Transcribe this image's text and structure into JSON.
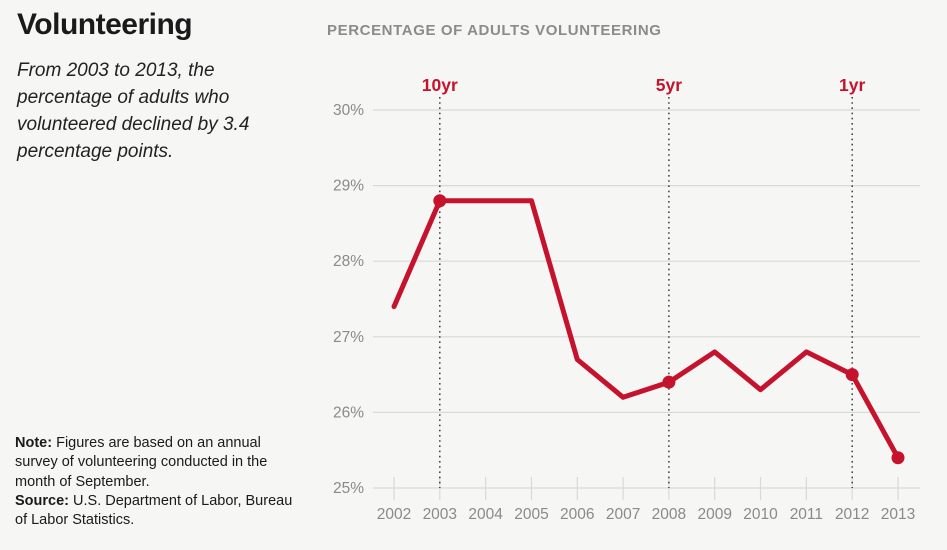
{
  "sidebar": {
    "title": "Volunteering",
    "subtitle": "From 2003 to 2013, the percentage of adults who volunteered declined by 3.4 percentage points.",
    "note_label": "Note:",
    "note_text": " Figures are based on an annual survey of volunteering conducted in the month of September.",
    "source_label": "Source:",
    "source_text": " U.S. Department of Labor, Bureau of Labor Statistics."
  },
  "chart": {
    "title": "PERCENTAGE OF ADULTS VOLUNTEERING"
  },
  "colors": {
    "accent_red": "#c5132d",
    "grid": "#d9d9d8",
    "axis_text": "#8a8a8a",
    "chart_title_text": "#8b8b8b",
    "dotted_line": "#222222",
    "background": "#f6f6f5"
  },
  "chart_data": {
    "type": "line",
    "title": "PERCENTAGE OF ADULTS VOLUNTEERING",
    "x": [
      2002,
      2003,
      2004,
      2005,
      2006,
      2007,
      2008,
      2009,
      2010,
      2011,
      2012,
      2013
    ],
    "values": [
      27.4,
      28.8,
      28.8,
      28.8,
      26.7,
      26.2,
      26.4,
      26.8,
      26.3,
      26.8,
      26.5,
      25.4
    ],
    "series_name": "Percentage of adults volunteering",
    "xlabel": "",
    "ylabel": "",
    "ylim": [
      25,
      30
    ],
    "yticks": [
      25,
      26,
      27,
      28,
      29,
      30
    ],
    "ytick_labels": [
      "25%",
      "26%",
      "27%",
      "28%",
      "29%",
      "30%"
    ],
    "xtick_labels": [
      "2002",
      "2003",
      "2004",
      "2005",
      "2006",
      "2007",
      "2008",
      "2009",
      "2010",
      "2011",
      "2012",
      "2013"
    ],
    "marker_years": [
      2003,
      2008,
      2012,
      2013
    ],
    "annotations": [
      {
        "x": 2003,
        "label": "10yr"
      },
      {
        "x": 2008,
        "label": "5yr"
      },
      {
        "x": 2012,
        "label": "1yr"
      }
    ],
    "grid": true,
    "legend": "none"
  }
}
